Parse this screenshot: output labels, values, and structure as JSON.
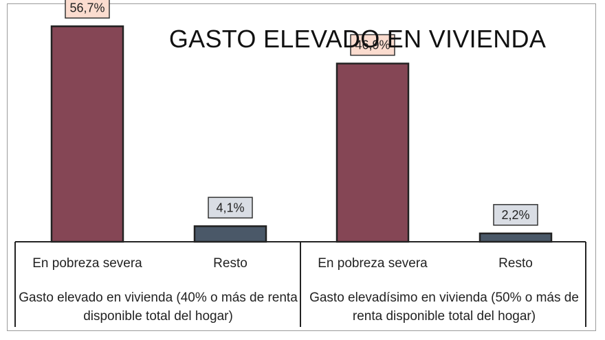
{
  "chart_data": {
    "type": "bar",
    "title": "GASTO ELEVADO EN VIVIENDA",
    "ylim": [
      0,
      60
    ],
    "grid": false,
    "groups": [
      {
        "label": "Gasto elevado en vivienda (40% o más de renta disponible total del hogar)",
        "categories": [
          "En pobreza severa",
          "Resto"
        ],
        "values": [
          56.7,
          4.1
        ],
        "data_labels": [
          "56,7%",
          "4,1%"
        ]
      },
      {
        "label": "Gasto elevadísimo en vivienda (50% o más de renta disponible total del hogar)",
        "categories": [
          "En pobreza severa",
          "Resto"
        ],
        "values": [
          46.9,
          2.2
        ],
        "data_labels": [
          "46,9%",
          "2,2%"
        ]
      }
    ],
    "colors": {
      "En pobreza severa": "#854655",
      "Resto": "#4a5868",
      "label_box_severa": "#fbdccf",
      "label_box_resto": "#d9dde4",
      "axis": "#222222"
    }
  }
}
